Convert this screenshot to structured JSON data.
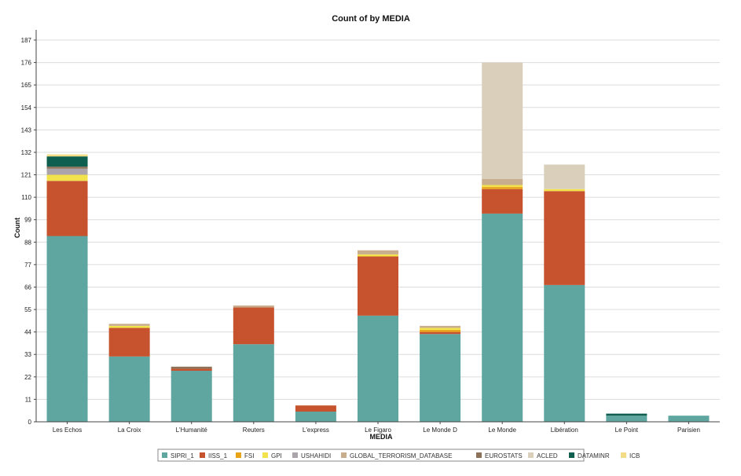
{
  "chart_data": {
    "type": "bar",
    "stacked": true,
    "title": "Count of  by MEDIA",
    "xlabel": "MEDIA",
    "ylabel": "Count",
    "ylim": [
      0,
      192
    ],
    "yticks": [
      0,
      11,
      22,
      33,
      44,
      55,
      66,
      77,
      88,
      99,
      110,
      121,
      132,
      143,
      154,
      165,
      176,
      187
    ],
    "grid": true,
    "legend_position": "bottom",
    "categories": [
      "Les Echos",
      "La Croix",
      "L'Humanité",
      "Reuters",
      "L'express",
      "Le Figaro",
      "Le Monde D",
      "Le Monde",
      "Libération",
      "Le Point",
      "Parisien"
    ],
    "series": [
      {
        "name": "SIPRI_1",
        "color": "#5fa6a0",
        "values": [
          91,
          32,
          25,
          38,
          5,
          52,
          43,
          102,
          67,
          3,
          3
        ]
      },
      {
        "name": "IISS_1",
        "color": "#c6522e",
        "values": [
          27,
          14,
          1,
          18,
          3,
          29,
          1,
          12,
          46,
          0,
          0
        ]
      },
      {
        "name": "FSI",
        "color": "#e8a317",
        "values": [
          0,
          0,
          0,
          0,
          0,
          0,
          1,
          1,
          0,
          0,
          0
        ]
      },
      {
        "name": "GPI",
        "color": "#f2e24c",
        "values": [
          3,
          1,
          0,
          0,
          0,
          1,
          1,
          1,
          1,
          0,
          0
        ]
      },
      {
        "name": "USHAHIDI",
        "color": "#aba4aa",
        "values": [
          3,
          0,
          0,
          0,
          0,
          0,
          0,
          0,
          0,
          0,
          0
        ]
      },
      {
        "name": "GLOBAL_TERRORISM_DATABASE",
        "color": "#c9ae8e",
        "values": [
          0,
          1,
          0,
          1,
          0,
          2,
          1,
          3,
          0,
          0,
          0
        ]
      },
      {
        "name": "EUROSTATS",
        "color": "#8c7259",
        "values": [
          1,
          0,
          1,
          0,
          0,
          0,
          0,
          0,
          0,
          0,
          0
        ]
      },
      {
        "name": "ACLED",
        "color": "#d9cfba",
        "values": [
          0,
          0,
          0,
          0,
          0,
          0,
          0,
          57,
          12,
          0,
          0
        ]
      },
      {
        "name": "DATAMINR",
        "color": "#0e5f4f",
        "values": [
          5,
          0,
          0,
          0,
          0,
          0,
          0,
          0,
          0,
          1,
          0
        ]
      },
      {
        "name": "ICB",
        "color": "#f3dc86",
        "values": [
          1,
          0,
          0,
          0,
          0,
          0,
          0,
          0,
          0,
          0,
          0
        ]
      }
    ]
  }
}
